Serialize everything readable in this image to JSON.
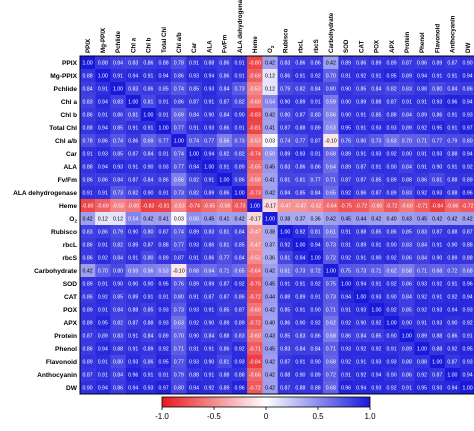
{
  "chart_data": {
    "type": "heatmap",
    "title": "",
    "labels": [
      "PPIX",
      "Mg-PPIX",
      "Pchlide",
      "Chl a",
      "Chl b",
      "Total Chl",
      "Chl a/b",
      "Car",
      "ALA",
      "Fv/Fm",
      "ALA dehydrogenase",
      "Heme",
      "O2",
      "Rubisco",
      "rbcL",
      "rbcS",
      "Carbohydrate",
      "SOD",
      "CAT",
      "POX",
      "APX",
      "Protein",
      "Phenol",
      "Flavonoid",
      "Anthocyanin",
      "DW"
    ],
    "matrix": [
      [
        1.0,
        0.88,
        0.84,
        0.83,
        0.86,
        0.88,
        0.78,
        0.91,
        0.88,
        0.86,
        0.91,
        -0.8,
        0.42,
        0.83,
        0.86,
        0.86,
        0.42,
        0.89,
        0.86,
        0.89,
        0.89,
        0.87,
        0.86,
        0.89,
        0.87,
        0.9
      ],
      [
        0.88,
        1.0,
        0.91,
        0.94,
        0.91,
        0.94,
        0.86,
        0.93,
        0.94,
        0.86,
        0.91,
        -0.69,
        0.12,
        0.86,
        0.91,
        0.92,
        0.7,
        0.91,
        0.92,
        0.91,
        0.95,
        0.89,
        0.94,
        0.91,
        0.91,
        0.94
      ],
      [
        0.84,
        0.91,
        1.0,
        0.83,
        0.86,
        0.85,
        0.74,
        0.85,
        0.93,
        0.84,
        0.73,
        -0.53,
        0.12,
        0.79,
        0.82,
        0.84,
        0.8,
        0.9,
        0.85,
        0.84,
        0.82,
        0.83,
        0.88,
        0.8,
        0.84,
        0.86
      ],
      [
        0.83,
        0.94,
        0.83,
        1.0,
        0.81,
        0.91,
        0.86,
        0.87,
        0.91,
        0.87,
        0.82,
        -0.6,
        0.54,
        0.9,
        0.89,
        0.91,
        0.59,
        0.9,
        0.89,
        0.88,
        0.87,
        0.91,
        0.91,
        0.93,
        0.96,
        0.94
      ],
      [
        0.86,
        0.91,
        0.86,
        0.81,
        1.0,
        0.91,
        0.69,
        0.84,
        0.9,
        0.84,
        0.9,
        -0.83,
        0.42,
        0.8,
        0.87,
        0.8,
        0.56,
        0.9,
        0.91,
        0.85,
        0.88,
        0.84,
        0.89,
        0.86,
        0.91,
        0.93
      ],
      [
        0.88,
        0.94,
        0.85,
        0.91,
        0.91,
        1.0,
        0.77,
        0.91,
        0.93,
        0.86,
        0.91,
        -0.81,
        0.41,
        0.87,
        0.88,
        0.89,
        0.53,
        0.95,
        0.91,
        0.93,
        0.93,
        0.89,
        0.92,
        0.95,
        0.91,
        0.97
      ],
      [
        0.78,
        0.86,
        0.74,
        0.86,
        0.69,
        0.77,
        1.0,
        0.74,
        0.77,
        0.56,
        0.73,
        -0.53,
        0.03,
        0.74,
        0.77,
        0.87,
        -0.1,
        0.76,
        0.8,
        0.73,
        0.63,
        0.7,
        0.71,
        0.77,
        0.79,
        0.8
      ],
      [
        0.91,
        0.93,
        0.85,
        0.87,
        0.84,
        0.91,
        0.74,
        1.0,
        0.94,
        0.82,
        0.82,
        -0.74,
        0.5,
        0.89,
        0.93,
        0.91,
        0.68,
        0.89,
        0.91,
        0.93,
        0.92,
        0.9,
        0.91,
        0.93,
        0.88,
        0.94
      ],
      [
        0.88,
        0.94,
        0.93,
        0.91,
        0.9,
        0.93,
        0.77,
        0.94,
        1.0,
        0.91,
        0.89,
        -0.65,
        0.45,
        0.83,
        0.86,
        0.86,
        0.64,
        0.89,
        0.87,
        0.91,
        0.9,
        0.84,
        0.91,
        0.9,
        0.91,
        0.92
      ],
      [
        0.86,
        0.86,
        0.84,
        0.87,
        0.84,
        0.86,
        0.56,
        0.82,
        0.91,
        1.0,
        0.86,
        -0.58,
        0.41,
        0.81,
        0.81,
        0.77,
        0.71,
        0.87,
        0.87,
        0.85,
        0.89,
        0.88,
        0.86,
        0.81,
        0.88,
        0.89
      ],
      [
        0.91,
        0.91,
        0.73,
        0.82,
        0.9,
        0.91,
        0.73,
        0.82,
        0.89,
        0.86,
        1.0,
        -0.73,
        0.42,
        0.84,
        0.85,
        0.84,
        0.65,
        0.92,
        0.86,
        0.87,
        0.89,
        0.83,
        0.92,
        0.93,
        0.88,
        0.96
      ],
      [
        -0.8,
        -0.69,
        -0.53,
        -0.6,
        -0.83,
        -0.81,
        -0.53,
        -0.74,
        -0.65,
        -0.58,
        -0.73,
        1.0,
        -0.17,
        -0.47,
        -0.47,
        -0.52,
        -0.64,
        -0.75,
        -0.72,
        -0.6,
        -0.72,
        -0.6,
        -0.71,
        -0.84,
        -0.66,
        -0.72
      ],
      [
        0.42,
        0.12,
        0.12,
        0.54,
        0.42,
        0.41,
        0.03,
        0.5,
        0.45,
        0.41,
        0.42,
        -0.17,
        1.0,
        0.38,
        0.37,
        0.36,
        0.42,
        0.45,
        0.44,
        0.42,
        0.4,
        0.43,
        0.45,
        0.42,
        0.42,
        0.42
      ],
      [
        0.83,
        0.86,
        0.79,
        0.9,
        0.8,
        0.87,
        0.74,
        0.89,
        0.83,
        0.81,
        0.84,
        -0.47,
        0.38,
        1.0,
        0.92,
        0.81,
        0.61,
        0.91,
        0.88,
        0.85,
        0.86,
        0.85,
        0.83,
        0.87,
        0.88,
        0.87
      ],
      [
        0.86,
        0.91,
        0.82,
        0.89,
        0.87,
        0.88,
        0.77,
        0.93,
        0.86,
        0.81,
        0.85,
        -0.47,
        0.37,
        0.92,
        1.0,
        0.94,
        0.73,
        0.91,
        0.89,
        0.91,
        0.9,
        0.83,
        0.84,
        0.91,
        0.9,
        0.88
      ],
      [
        0.86,
        0.92,
        0.84,
        0.91,
        0.8,
        0.89,
        0.87,
        0.91,
        0.86,
        0.77,
        0.84,
        -0.52,
        0.36,
        0.81,
        0.94,
        1.0,
        0.72,
        0.92,
        0.91,
        0.9,
        0.92,
        0.86,
        0.84,
        0.9,
        0.89,
        0.88
      ],
      [
        0.42,
        0.7,
        0.8,
        0.59,
        0.56,
        0.53,
        -0.1,
        0.68,
        0.64,
        0.71,
        0.65,
        -0.64,
        0.42,
        0.61,
        0.73,
        0.72,
        1.0,
        0.75,
        0.73,
        0.71,
        0.62,
        0.58,
        0.71,
        0.68,
        0.72,
        0.68
      ],
      [
        0.89,
        0.91,
        0.9,
        0.9,
        0.9,
        0.95,
        0.76,
        0.89,
        0.89,
        0.87,
        0.92,
        -0.75,
        0.45,
        0.91,
        0.91,
        0.92,
        0.75,
        1.0,
        0.94,
        0.91,
        0.92,
        0.86,
        0.93,
        0.92,
        0.91,
        0.96
      ],
      [
        0.86,
        0.92,
        0.85,
        0.89,
        0.91,
        0.91,
        0.8,
        0.91,
        0.87,
        0.87,
        0.86,
        -0.72,
        0.44,
        0.88,
        0.89,
        0.91,
        0.73,
        0.94,
        1.0,
        0.93,
        0.9,
        0.84,
        0.92,
        0.91,
        0.92,
        0.94
      ],
      [
        0.89,
        0.91,
        0.84,
        0.88,
        0.85,
        0.93,
        0.73,
        0.93,
        0.91,
        0.85,
        0.87,
        -0.6,
        0.42,
        0.85,
        0.91,
        0.9,
        0.71,
        0.91,
        0.93,
        1.0,
        0.92,
        0.85,
        0.92,
        0.93,
        0.94,
        0.93
      ],
      [
        0.89,
        0.95,
        0.82,
        0.87,
        0.88,
        0.93,
        0.63,
        0.92,
        0.9,
        0.89,
        0.89,
        -0.72,
        0.4,
        0.86,
        0.9,
        0.92,
        0.62,
        0.92,
        0.9,
        0.92,
        1.0,
        0.9,
        0.91,
        0.93,
        0.9,
        0.92
      ],
      [
        0.87,
        0.89,
        0.83,
        0.91,
        0.84,
        0.89,
        0.7,
        0.9,
        0.84,
        0.88,
        0.83,
        -0.6,
        0.43,
        0.85,
        0.83,
        0.86,
        0.58,
        0.86,
        0.84,
        0.85,
        0.9,
        1.0,
        0.89,
        0.88,
        0.86,
        0.91
      ],
      [
        0.86,
        0.94,
        0.88,
        0.91,
        0.89,
        0.92,
        0.71,
        0.91,
        0.91,
        0.86,
        0.92,
        -0.71,
        0.45,
        0.83,
        0.84,
        0.84,
        0.71,
        0.93,
        0.92,
        0.92,
        0.91,
        0.89,
        1.0,
        0.88,
        0.92,
        0.95
      ],
      [
        0.89,
        0.91,
        0.8,
        0.93,
        0.86,
        0.95,
        0.77,
        0.93,
        0.9,
        0.81,
        0.93,
        -0.84,
        0.42,
        0.87,
        0.91,
        0.9,
        0.68,
        0.92,
        0.91,
        0.93,
        0.93,
        0.88,
        0.88,
        1.0,
        0.87,
        0.93
      ],
      [
        0.87,
        0.91,
        0.84,
        0.96,
        0.91,
        0.91,
        0.79,
        0.88,
        0.91,
        0.88,
        0.88,
        -0.66,
        0.42,
        0.88,
        0.9,
        0.89,
        0.72,
        0.91,
        0.92,
        0.94,
        0.9,
        0.86,
        0.92,
        0.87,
        1.0,
        0.94
      ],
      [
        0.9,
        0.94,
        0.86,
        0.94,
        0.93,
        0.97,
        0.8,
        0.94,
        0.92,
        0.89,
        0.96,
        -0.72,
        0.42,
        0.87,
        0.88,
        0.88,
        0.68,
        0.96,
        0.94,
        0.93,
        0.92,
        0.91,
        0.95,
        0.93,
        0.94,
        1.0
      ]
    ],
    "colorbar": {
      "min": -1.0,
      "max": 1.0,
      "ticks": [
        "-1.0",
        "-0.5",
        "0",
        "0.5",
        "1.0"
      ]
    },
    "colors": {
      "negative": "#e8191f",
      "neutral": "#ffffff",
      "positive": "#1a1adb",
      "border": "#000000"
    }
  }
}
